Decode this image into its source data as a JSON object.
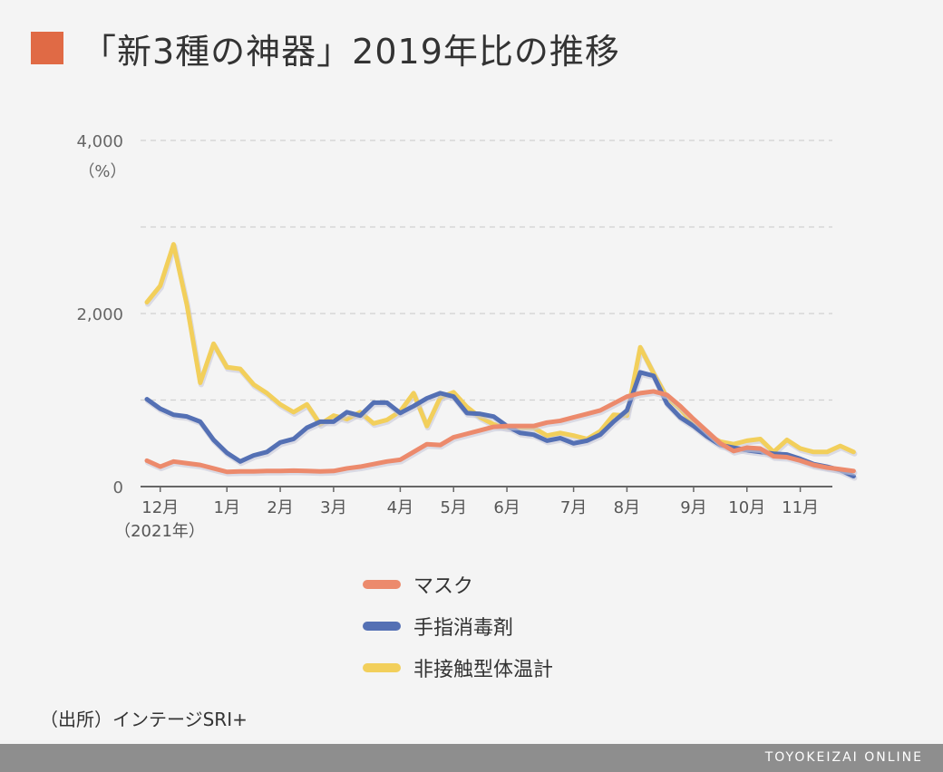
{
  "title": "「新3種の神器」2019年比の推移",
  "source": "（出所）インテージSRI+",
  "footer": "TOYOKEIZAI ONLINE",
  "colors": {
    "title_mark": "#e06a45",
    "mask": "#ec8a6c",
    "sanitizer": "#5470b4",
    "thermometer": "#f2cf5b",
    "grid": "#d0d0d0",
    "axis": "#666666",
    "footer_bg": "#8e8e8e"
  },
  "chart_data": {
    "type": "line",
    "title": "「新3種の神器」2019年比の推移",
    "ylabel": "（%）",
    "ylim": [
      0,
      4000
    ],
    "yticks": [
      0,
      2000,
      4000
    ],
    "yticklabels": [
      "0",
      "2,000",
      "4,000"
    ],
    "grid_lines": [
      1000,
      2000,
      3000,
      4000
    ],
    "xlim": [
      0,
      51
    ],
    "xtick_positions": [
      1,
      6,
      10,
      14,
      19,
      23,
      27,
      32,
      36,
      41,
      45,
      49
    ],
    "xticklabels": [
      "12月",
      "1月",
      "2月",
      "3月",
      "4月",
      "5月",
      "6月",
      "7月",
      "8月",
      "9月",
      "10月",
      "11月"
    ],
    "x_note": "（2021年）",
    "legend_position": "bottom-center",
    "series": [
      {
        "name": "マスク",
        "color": "#ec8a6c",
        "values": [
          300,
          230,
          290,
          270,
          250,
          210,
          170,
          175,
          175,
          180,
          180,
          185,
          180,
          175,
          180,
          210,
          230,
          260,
          290,
          310,
          400,
          490,
          480,
          570,
          610,
          650,
          690,
          700,
          700,
          700,
          740,
          760,
          800,
          840,
          880,
          960,
          1040,
          1080,
          1100,
          1060,
          930,
          780,
          640,
          500,
          410,
          450,
          440,
          350,
          340,
          300,
          250,
          220,
          200,
          180
        ]
      },
      {
        "name": "手指消毒剤",
        "color": "#5470b4",
        "values": [
          1010,
          900,
          830,
          810,
          750,
          540,
          390,
          290,
          360,
          400,
          510,
          550,
          680,
          750,
          750,
          860,
          820,
          970,
          970,
          850,
          930,
          1020,
          1080,
          1040,
          850,
          840,
          810,
          700,
          620,
          600,
          530,
          560,
          500,
          530,
          600,
          750,
          880,
          1320,
          1280,
          960,
          800,
          700,
          580,
          480,
          450,
          420,
          400,
          380,
          370,
          320,
          260,
          230,
          190,
          120
        ]
      },
      {
        "name": "非接触型体温計",
        "color": "#f2cf5b",
        "values": [
          2130,
          2320,
          2800,
          2100,
          1200,
          1650,
          1380,
          1360,
          1180,
          1080,
          950,
          860,
          950,
          720,
          820,
          780,
          860,
          730,
          770,
          870,
          1080,
          700,
          1030,
          1090,
          920,
          800,
          720,
          680,
          680,
          680,
          590,
          620,
          590,
          550,
          640,
          830,
          820,
          1610,
          1310,
          1030,
          900,
          720,
          600,
          520,
          490,
          530,
          550,
          400,
          540,
          440,
          400,
          400,
          470,
          400
        ]
      }
    ]
  }
}
